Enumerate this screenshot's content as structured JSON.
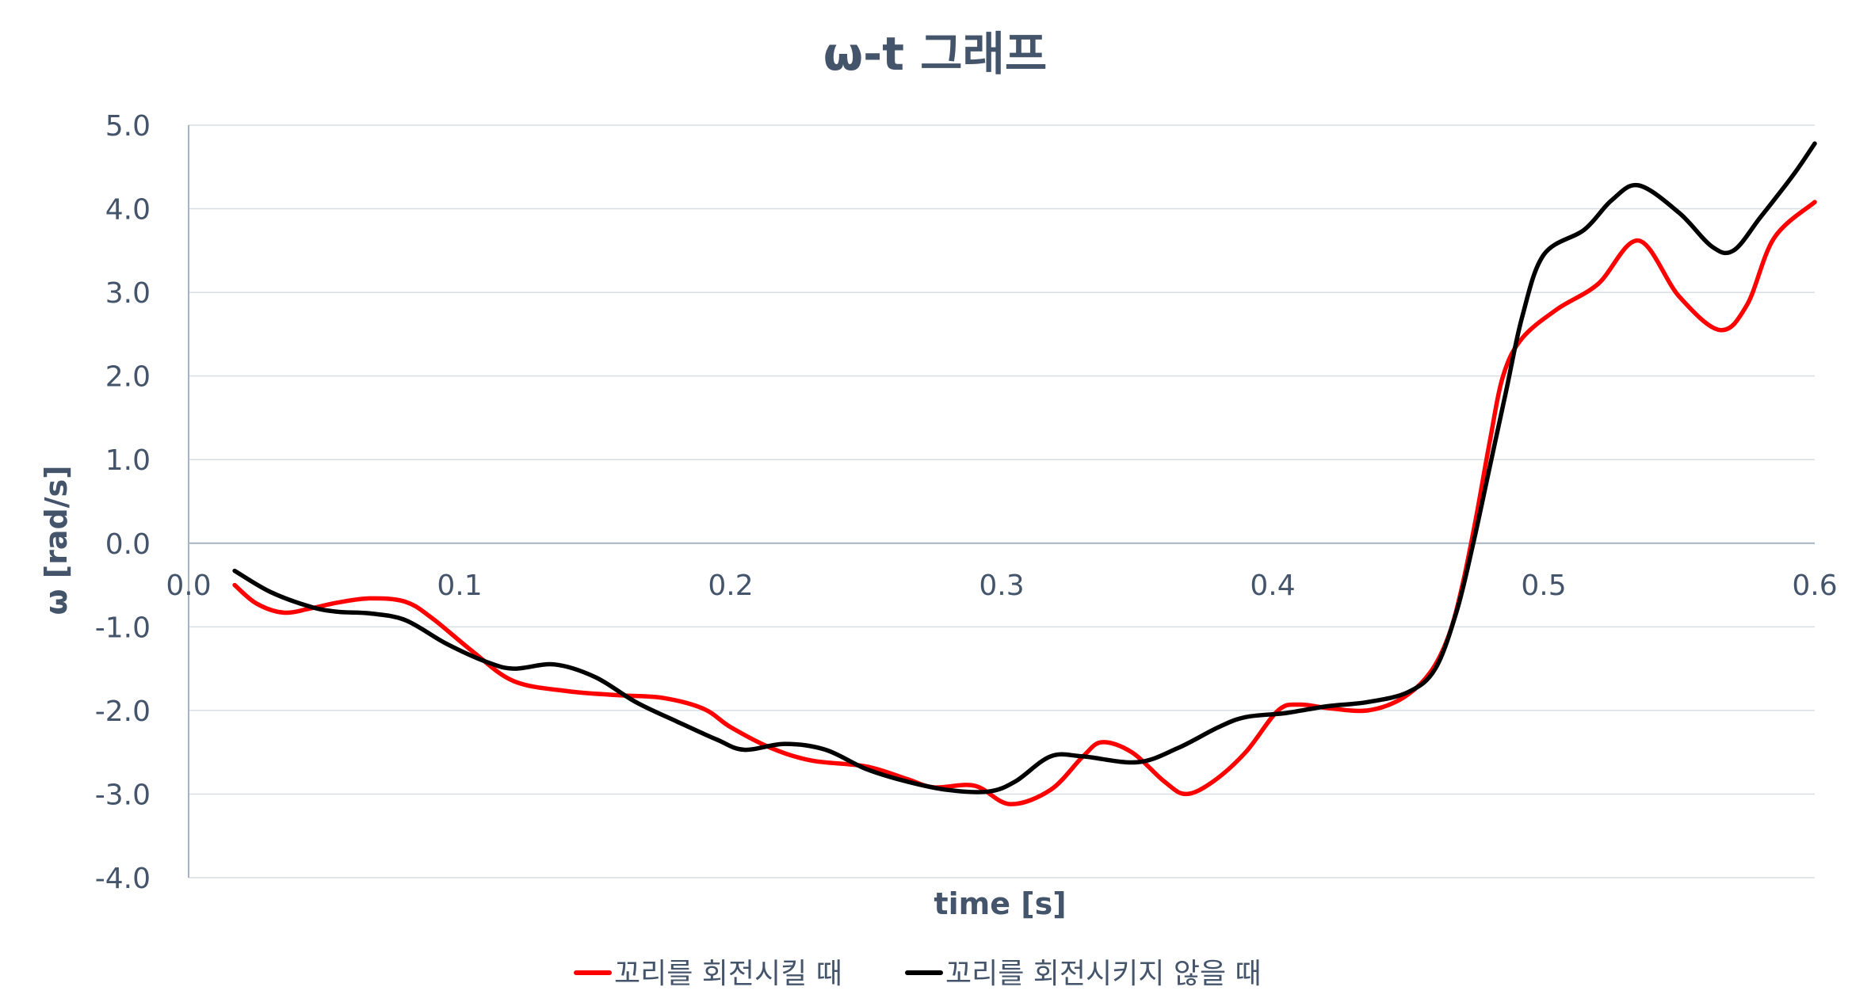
{
  "chart_data": {
    "type": "line",
    "title": "ω-t 그래프",
    "xlabel": "time [s]",
    "ylabel": "ω [rad/s]",
    "xlim": [
      0.0,
      0.6
    ],
    "ylim": [
      -4.0,
      5.0
    ],
    "x_ticks": [
      "0.0",
      "0.1",
      "0.2",
      "0.3",
      "0.4",
      "0.5",
      "0.6"
    ],
    "y_ticks": [
      "5.0",
      "4.0",
      "3.0",
      "2.0",
      "1.0",
      "0.0",
      "-1.0",
      "-2.0",
      "-3.0",
      "-4.0"
    ],
    "grid": true,
    "legend_position": "bottom",
    "series": [
      {
        "name": "꼬리를 회전시킬 때",
        "color": "#ff0000",
        "points": [
          [
            0.017,
            -0.5
          ],
          [
            0.025,
            -0.72
          ],
          [
            0.035,
            -0.83
          ],
          [
            0.045,
            -0.78
          ],
          [
            0.055,
            -0.71
          ],
          [
            0.067,
            -0.66
          ],
          [
            0.08,
            -0.7
          ],
          [
            0.09,
            -0.9
          ],
          [
            0.105,
            -1.3
          ],
          [
            0.12,
            -1.65
          ],
          [
            0.14,
            -1.77
          ],
          [
            0.16,
            -1.82
          ],
          [
            0.175,
            -1.85
          ],
          [
            0.19,
            -1.98
          ],
          [
            0.2,
            -2.2
          ],
          [
            0.215,
            -2.45
          ],
          [
            0.23,
            -2.6
          ],
          [
            0.25,
            -2.67
          ],
          [
            0.265,
            -2.82
          ],
          [
            0.275,
            -2.92
          ],
          [
            0.29,
            -2.9
          ],
          [
            0.303,
            -3.12
          ],
          [
            0.318,
            -2.95
          ],
          [
            0.33,
            -2.55
          ],
          [
            0.337,
            -2.38
          ],
          [
            0.348,
            -2.5
          ],
          [
            0.36,
            -2.85
          ],
          [
            0.368,
            -3.0
          ],
          [
            0.378,
            -2.85
          ],
          [
            0.39,
            -2.5
          ],
          [
            0.402,
            -2.0
          ],
          [
            0.41,
            -1.93
          ],
          [
            0.42,
            -1.97
          ],
          [
            0.435,
            -2.0
          ],
          [
            0.448,
            -1.85
          ],
          [
            0.458,
            -1.55
          ],
          [
            0.465,
            -1.1
          ],
          [
            0.47,
            -0.5
          ],
          [
            0.475,
            0.3
          ],
          [
            0.48,
            1.2
          ],
          [
            0.485,
            2.0
          ],
          [
            0.492,
            2.45
          ],
          [
            0.505,
            2.8
          ],
          [
            0.52,
            3.1
          ],
          [
            0.535,
            3.62
          ],
          [
            0.55,
            2.95
          ],
          [
            0.565,
            2.55
          ],
          [
            0.575,
            2.85
          ],
          [
            0.585,
            3.65
          ],
          [
            0.6,
            4.08
          ]
        ]
      },
      {
        "name": "꼬리를 회전시키지 않을 때",
        "color": "#000000",
        "points": [
          [
            0.017,
            -0.33
          ],
          [
            0.03,
            -0.58
          ],
          [
            0.045,
            -0.76
          ],
          [
            0.055,
            -0.82
          ],
          [
            0.067,
            -0.84
          ],
          [
            0.08,
            -0.92
          ],
          [
            0.095,
            -1.2
          ],
          [
            0.11,
            -1.42
          ],
          [
            0.12,
            -1.5
          ],
          [
            0.135,
            -1.45
          ],
          [
            0.15,
            -1.6
          ],
          [
            0.165,
            -1.9
          ],
          [
            0.18,
            -2.13
          ],
          [
            0.195,
            -2.35
          ],
          [
            0.205,
            -2.47
          ],
          [
            0.22,
            -2.4
          ],
          [
            0.235,
            -2.47
          ],
          [
            0.25,
            -2.7
          ],
          [
            0.265,
            -2.85
          ],
          [
            0.28,
            -2.95
          ],
          [
            0.295,
            -2.97
          ],
          [
            0.305,
            -2.85
          ],
          [
            0.318,
            -2.55
          ],
          [
            0.33,
            -2.55
          ],
          [
            0.35,
            -2.62
          ],
          [
            0.365,
            -2.45
          ],
          [
            0.38,
            -2.2
          ],
          [
            0.39,
            -2.08
          ],
          [
            0.405,
            -2.03
          ],
          [
            0.42,
            -1.95
          ],
          [
            0.435,
            -1.9
          ],
          [
            0.45,
            -1.78
          ],
          [
            0.46,
            -1.5
          ],
          [
            0.468,
            -0.8
          ],
          [
            0.474,
            0.0
          ],
          [
            0.48,
            0.9
          ],
          [
            0.486,
            1.8
          ],
          [
            0.492,
            2.7
          ],
          [
            0.5,
            3.45
          ],
          [
            0.515,
            3.75
          ],
          [
            0.525,
            4.1
          ],
          [
            0.535,
            4.28
          ],
          [
            0.55,
            3.95
          ],
          [
            0.562,
            3.55
          ],
          [
            0.57,
            3.5
          ],
          [
            0.58,
            3.9
          ],
          [
            0.592,
            4.4
          ],
          [
            0.6,
            4.78
          ]
        ]
      }
    ]
  }
}
